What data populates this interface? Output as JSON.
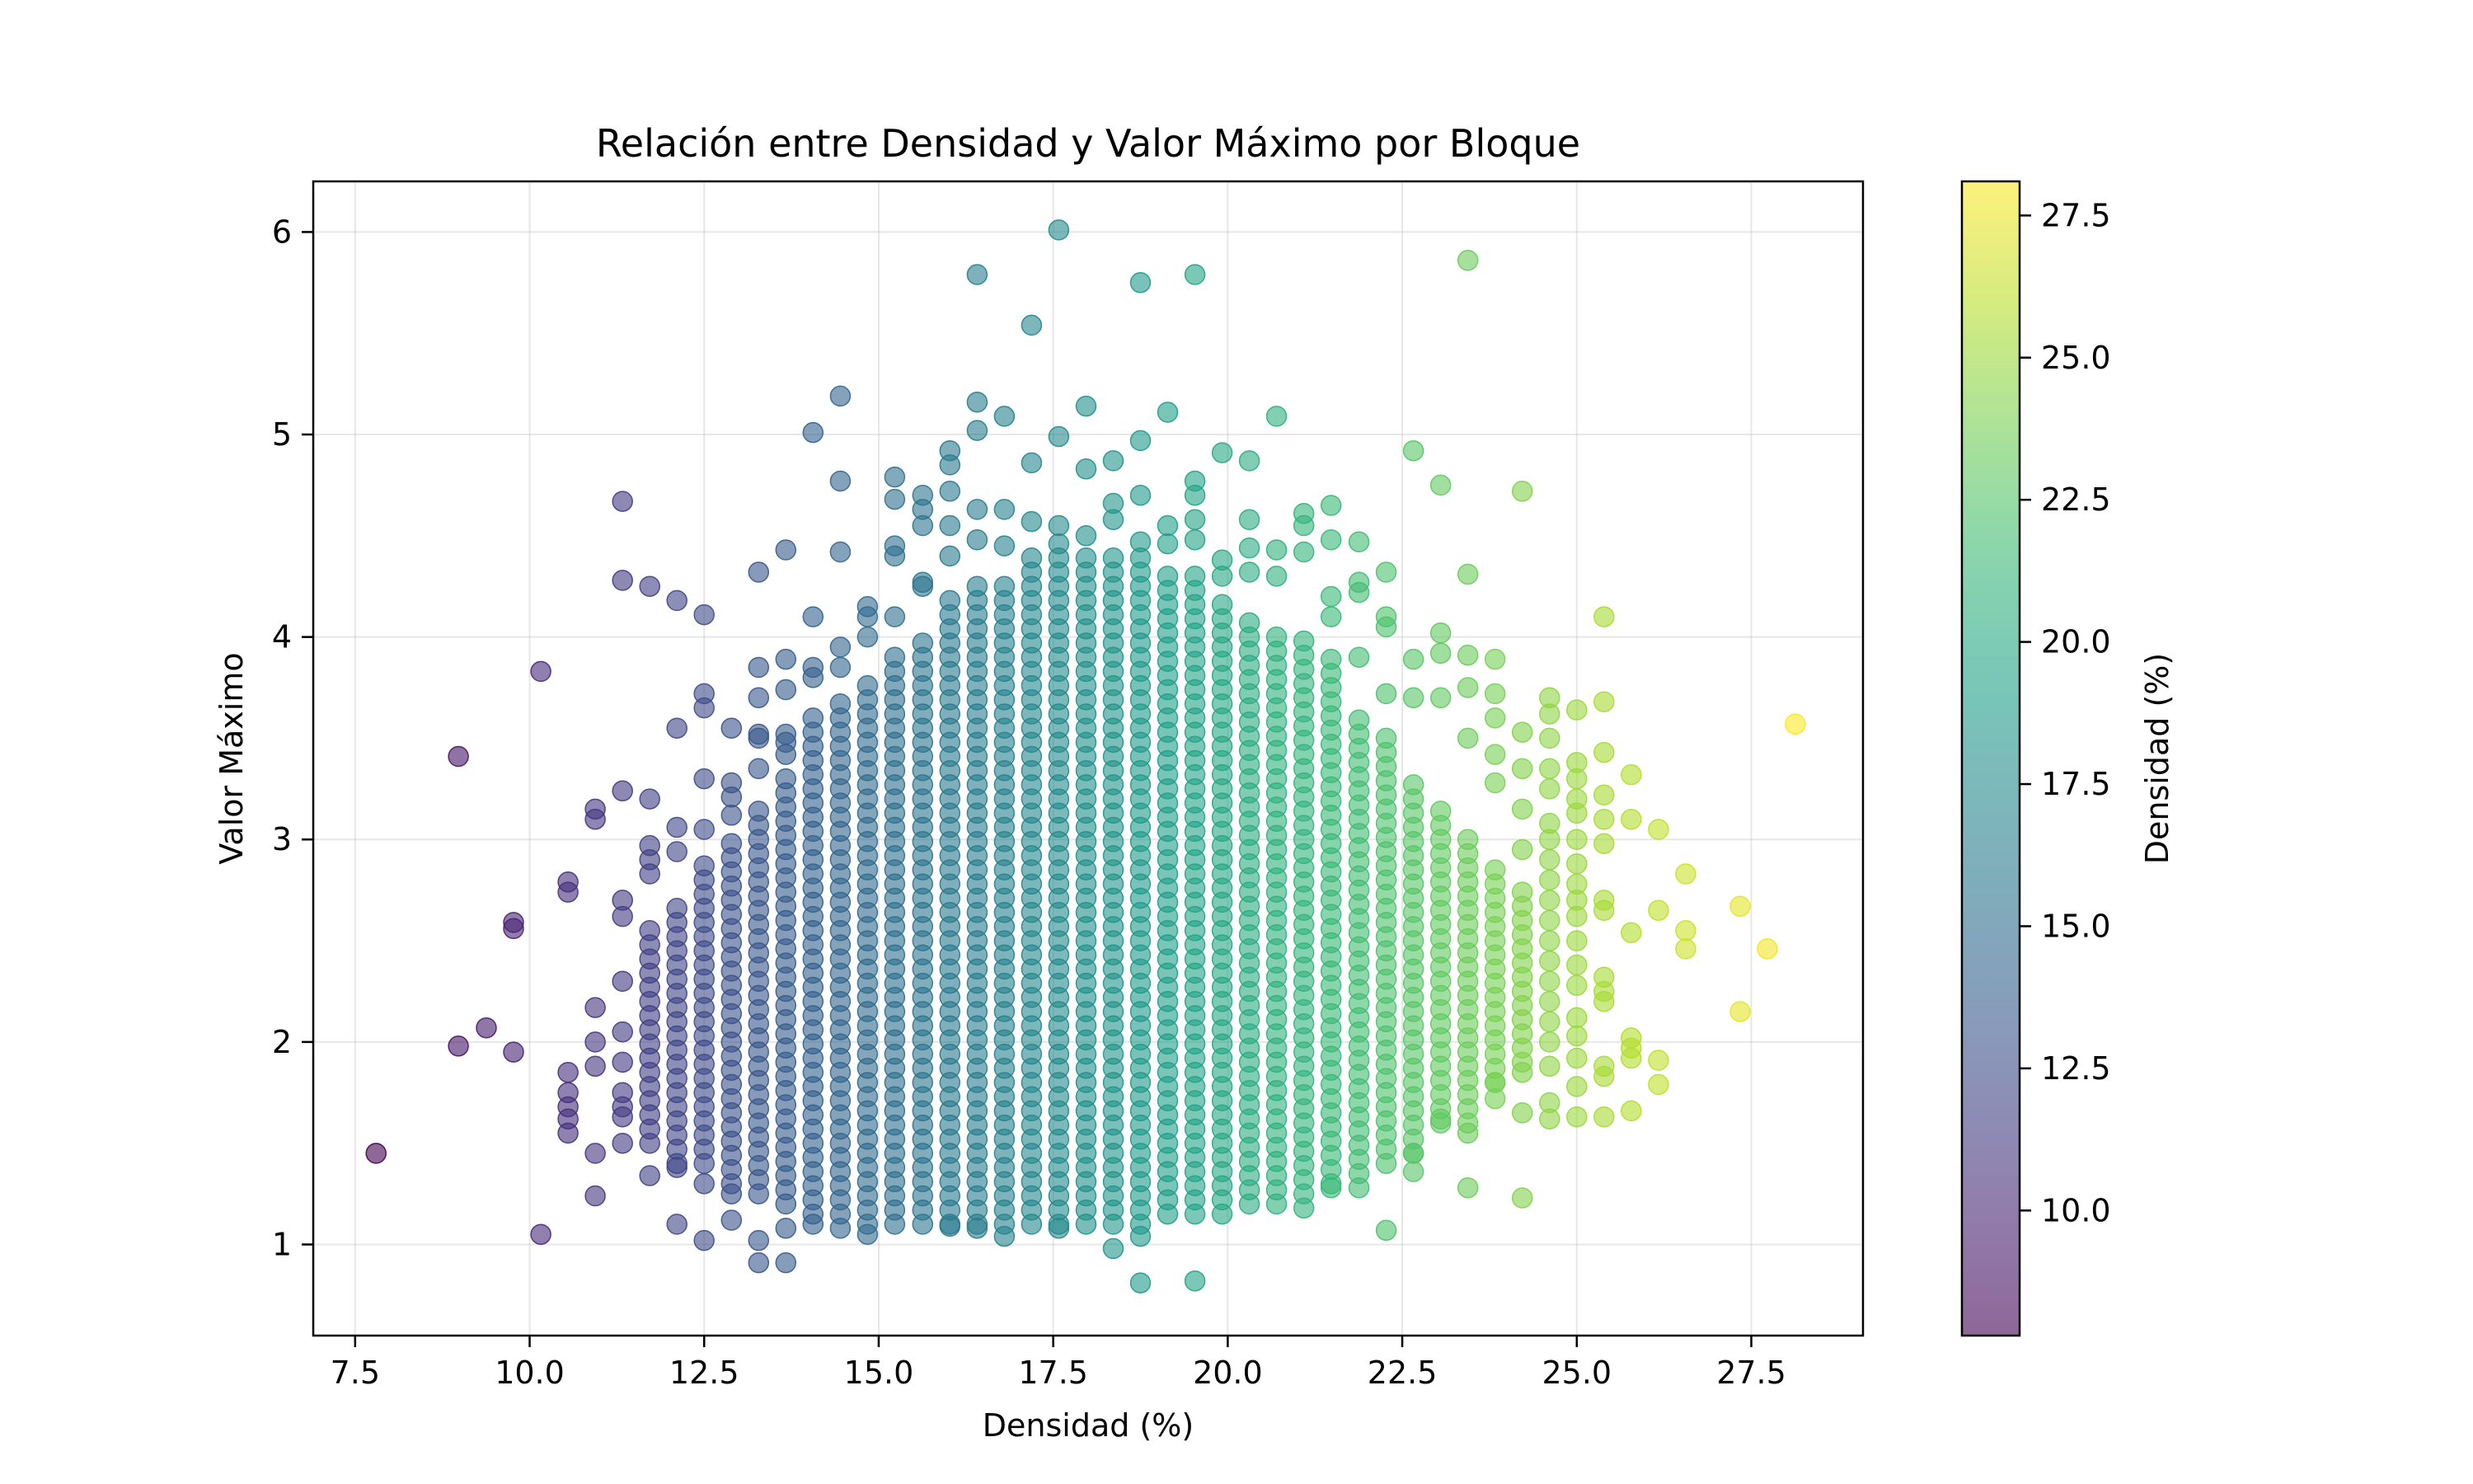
{
  "chart_data": {
    "type": "scatter",
    "title": "Relación entre Densidad y Valor Máximo por Bloque",
    "xlabel": "Densidad (%)",
    "ylabel": "Valor Máximo",
    "xlim": [
      6.9,
      29.1
    ],
    "ylim": [
      0.55,
      6.25
    ],
    "xticks": [
      7.5,
      10.0,
      12.5,
      15.0,
      17.5,
      20.0,
      22.5,
      25.0,
      27.5
    ],
    "xtick_labels": [
      "7.5",
      "10.0",
      "12.5",
      "15.0",
      "17.5",
      "20.0",
      "22.5",
      "25.0",
      "27.5"
    ],
    "yticks": [
      1,
      2,
      3,
      4,
      5,
      6
    ],
    "ytick_labels": [
      "1",
      "2",
      "3",
      "4",
      "5",
      "6"
    ],
    "grid": true,
    "colormap": "viridis",
    "marker_alpha": 0.6,
    "colorbar": {
      "label": "Densidad (%)",
      "range": [
        7.8,
        28.1
      ],
      "ticks": [
        10.0,
        12.5,
        15.0,
        17.5,
        20.0,
        22.5,
        25.0,
        27.5
      ],
      "tick_labels": [
        "10.0",
        "12.5",
        "15.0",
        "17.5",
        "20.0",
        "22.5",
        "25.0",
        "27.5"
      ]
    },
    "density_columns": [
      7.8,
      8.98,
      9.38,
      9.77,
      10.16,
      10.55,
      10.94,
      11.33,
      11.72,
      12.11,
      12.5,
      12.89,
      13.28,
      13.67,
      14.06,
      14.45,
      14.84,
      15.23,
      15.63,
      16.02,
      16.41,
      16.8,
      17.19,
      17.58,
      17.97,
      18.36,
      18.75,
      19.14,
      19.53,
      19.92,
      20.31,
      20.7,
      21.09,
      21.48,
      21.88,
      22.27,
      22.66,
      23.05,
      23.44,
      23.83,
      24.22,
      24.61,
      25.0,
      25.39,
      25.78,
      26.17,
      26.56,
      27.34,
      27.73,
      28.13
    ],
    "bulk_ranges": [
      {
        "x": 11.72,
        "y": [
          1.5,
          2.6
        ]
      },
      {
        "x": 12.11,
        "y": [
          1.4,
          2.7
        ]
      },
      {
        "x": 12.5,
        "y": [
          1.4,
          2.9
        ]
      },
      {
        "x": 12.89,
        "y": [
          1.3,
          3.0
        ]
      },
      {
        "x": 13.28,
        "y": [
          1.25,
          3.2
        ]
      },
      {
        "x": 13.67,
        "y": [
          1.2,
          3.3
        ]
      },
      {
        "x": 14.06,
        "y": [
          1.15,
          3.6
        ]
      },
      {
        "x": 14.45,
        "y": [
          1.15,
          3.7
        ]
      },
      {
        "x": 14.84,
        "y": [
          1.1,
          3.8
        ]
      },
      {
        "x": 15.23,
        "y": [
          1.1,
          3.9
        ]
      },
      {
        "x": 15.63,
        "y": [
          1.1,
          4.0
        ]
      },
      {
        "x": 16.02,
        "y": [
          1.1,
          4.2
        ]
      },
      {
        "x": 16.41,
        "y": [
          1.1,
          4.3
        ]
      },
      {
        "x": 16.8,
        "y": [
          1.1,
          4.3
        ]
      },
      {
        "x": 17.19,
        "y": [
          1.1,
          4.4
        ]
      },
      {
        "x": 17.58,
        "y": [
          1.1,
          4.5
        ]
      },
      {
        "x": 17.97,
        "y": [
          1.1,
          4.4
        ]
      },
      {
        "x": 18.36,
        "y": [
          1.1,
          4.4
        ]
      },
      {
        "x": 18.75,
        "y": [
          1.1,
          4.4
        ]
      },
      {
        "x": 19.14,
        "y": [
          1.15,
          4.3
        ]
      },
      {
        "x": 19.53,
        "y": [
          1.15,
          4.3
        ]
      },
      {
        "x": 19.92,
        "y": [
          1.15,
          4.2
        ]
      },
      {
        "x": 20.31,
        "y": [
          1.2,
          4.1
        ]
      },
      {
        "x": 20.7,
        "y": [
          1.2,
          4.0
        ]
      },
      {
        "x": 21.09,
        "y": [
          1.25,
          4.0
        ]
      },
      {
        "x": 21.48,
        "y": [
          1.3,
          3.9
        ]
      },
      {
        "x": 21.88,
        "y": [
          1.35,
          3.6
        ]
      },
      {
        "x": 22.27,
        "y": [
          1.4,
          3.5
        ]
      },
      {
        "x": 22.66,
        "y": [
          1.45,
          3.3
        ]
      },
      {
        "x": 23.05,
        "y": [
          1.6,
          3.2
        ]
      },
      {
        "x": 23.44,
        "y": [
          1.6,
          3.0
        ]
      },
      {
        "x": 23.83,
        "y": [
          1.8,
          2.9
        ]
      },
      {
        "x": 24.22,
        "y": [
          1.9,
          2.8
        ]
      }
    ],
    "points": [
      [
        7.8,
        1.45
      ],
      [
        8.98,
        3.41
      ],
      [
        8.98,
        1.98
      ],
      [
        9.38,
        2.07
      ],
      [
        9.77,
        2.59
      ],
      [
        9.77,
        2.56
      ],
      [
        9.77,
        1.95
      ],
      [
        10.16,
        3.83
      ],
      [
        10.16,
        1.05
      ],
      [
        10.55,
        2.79
      ],
      [
        10.55,
        2.74
      ],
      [
        10.55,
        1.85
      ],
      [
        10.55,
        1.75
      ],
      [
        10.55,
        1.68
      ],
      [
        10.55,
        1.62
      ],
      [
        10.55,
        1.55
      ],
      [
        10.94,
        3.15
      ],
      [
        10.94,
        3.1
      ],
      [
        10.94,
        2.17
      ],
      [
        10.94,
        2.0
      ],
      [
        10.94,
        1.88
      ],
      [
        10.94,
        1.45
      ],
      [
        10.94,
        1.24
      ],
      [
        11.33,
        4.67
      ],
      [
        11.33,
        4.28
      ],
      [
        11.33,
        3.24
      ],
      [
        11.33,
        2.7
      ],
      [
        11.33,
        2.62
      ],
      [
        11.33,
        2.3
      ],
      [
        11.33,
        2.05
      ],
      [
        11.33,
        1.9
      ],
      [
        11.33,
        1.75
      ],
      [
        11.33,
        1.68
      ],
      [
        11.33,
        1.63
      ],
      [
        11.33,
        1.5
      ],
      [
        11.72,
        4.25
      ],
      [
        11.72,
        3.2
      ],
      [
        11.72,
        2.97
      ],
      [
        11.72,
        2.9
      ],
      [
        11.72,
        2.83
      ],
      [
        11.72,
        1.34
      ],
      [
        12.11,
        4.18
      ],
      [
        12.11,
        3.55
      ],
      [
        12.11,
        3.06
      ],
      [
        12.11,
        2.94
      ],
      [
        12.11,
        1.38
      ],
      [
        12.11,
        1.1
      ],
      [
        12.5,
        4.11
      ],
      [
        12.5,
        3.72
      ],
      [
        12.5,
        3.65
      ],
      [
        12.5,
        3.3
      ],
      [
        12.5,
        3.05
      ],
      [
        12.5,
        1.3
      ],
      [
        12.5,
        1.02
      ],
      [
        12.89,
        3.55
      ],
      [
        12.89,
        3.28
      ],
      [
        12.89,
        3.21
      ],
      [
        12.89,
        3.12
      ],
      [
        12.89,
        1.25
      ],
      [
        12.89,
        1.12
      ],
      [
        13.28,
        4.32
      ],
      [
        13.28,
        3.85
      ],
      [
        13.28,
        3.7
      ],
      [
        13.28,
        3.52
      ],
      [
        13.28,
        3.5
      ],
      [
        13.28,
        3.35
      ],
      [
        13.28,
        1.02
      ],
      [
        13.28,
        0.91
      ],
      [
        13.67,
        4.43
      ],
      [
        13.67,
        3.89
      ],
      [
        13.67,
        3.74
      ],
      [
        13.67,
        3.52
      ],
      [
        13.67,
        3.48
      ],
      [
        13.67,
        3.42
      ],
      [
        13.67,
        1.08
      ],
      [
        13.67,
        0.91
      ],
      [
        14.06,
        5.01
      ],
      [
        14.06,
        4.1
      ],
      [
        14.06,
        3.85
      ],
      [
        14.06,
        3.8
      ],
      [
        14.06,
        1.1
      ],
      [
        14.45,
        5.19
      ],
      [
        14.45,
        4.77
      ],
      [
        14.45,
        4.42
      ],
      [
        14.45,
        3.95
      ],
      [
        14.45,
        3.85
      ],
      [
        14.45,
        1.08
      ],
      [
        14.84,
        4.15
      ],
      [
        14.84,
        4.1
      ],
      [
        14.84,
        4.0
      ],
      [
        14.84,
        1.05
      ],
      [
        15.23,
        4.79
      ],
      [
        15.23,
        4.68
      ],
      [
        15.23,
        4.45
      ],
      [
        15.23,
        4.4
      ],
      [
        15.23,
        4.1
      ],
      [
        15.63,
        4.7
      ],
      [
        15.63,
        4.63
      ],
      [
        15.63,
        4.55
      ],
      [
        15.63,
        4.27
      ],
      [
        15.63,
        4.25
      ],
      [
        16.02,
        4.92
      ],
      [
        16.02,
        4.85
      ],
      [
        16.02,
        4.72
      ],
      [
        16.02,
        4.55
      ],
      [
        16.02,
        4.4
      ],
      [
        16.02,
        1.09
      ],
      [
        16.41,
        5.79
      ],
      [
        16.41,
        5.16
      ],
      [
        16.41,
        5.02
      ],
      [
        16.41,
        4.63
      ],
      [
        16.41,
        4.48
      ],
      [
        16.41,
        1.08
      ],
      [
        16.8,
        5.09
      ],
      [
        16.8,
        4.63
      ],
      [
        16.8,
        4.45
      ],
      [
        16.8,
        1.04
      ],
      [
        17.19,
        5.54
      ],
      [
        17.19,
        4.86
      ],
      [
        17.19,
        4.57
      ],
      [
        17.58,
        6.01
      ],
      [
        17.58,
        4.99
      ],
      [
        17.58,
        4.55
      ],
      [
        17.58,
        1.08
      ],
      [
        17.97,
        5.14
      ],
      [
        17.97,
        4.83
      ],
      [
        17.97,
        4.5
      ],
      [
        18.36,
        4.87
      ],
      [
        18.36,
        4.66
      ],
      [
        18.36,
        4.58
      ],
      [
        18.36,
        0.98
      ],
      [
        18.75,
        5.75
      ],
      [
        18.75,
        4.97
      ],
      [
        18.75,
        4.7
      ],
      [
        18.75,
        4.47
      ],
      [
        18.75,
        1.04
      ],
      [
        18.75,
        0.81
      ],
      [
        19.14,
        5.11
      ],
      [
        19.14,
        4.55
      ],
      [
        19.14,
        4.46
      ],
      [
        19.53,
        5.79
      ],
      [
        19.53,
        4.77
      ],
      [
        19.53,
        4.7
      ],
      [
        19.53,
        4.58
      ],
      [
        19.53,
        4.48
      ],
      [
        19.53,
        0.82
      ],
      [
        19.92,
        4.91
      ],
      [
        19.92,
        4.38
      ],
      [
        19.92,
        4.3
      ],
      [
        20.31,
        4.87
      ],
      [
        20.31,
        4.58
      ],
      [
        20.31,
        4.44
      ],
      [
        20.31,
        4.32
      ],
      [
        20.7,
        5.09
      ],
      [
        20.7,
        4.43
      ],
      [
        20.7,
        4.3
      ],
      [
        21.09,
        4.61
      ],
      [
        21.09,
        4.55
      ],
      [
        21.09,
        4.42
      ],
      [
        21.09,
        1.18
      ],
      [
        21.48,
        4.65
      ],
      [
        21.48,
        4.48
      ],
      [
        21.48,
        4.2
      ],
      [
        21.48,
        4.1
      ],
      [
        21.48,
        1.28
      ],
      [
        21.88,
        4.47
      ],
      [
        21.88,
        4.27
      ],
      [
        21.88,
        4.22
      ],
      [
        21.88,
        3.9
      ],
      [
        21.88,
        1.28
      ],
      [
        22.27,
        4.32
      ],
      [
        22.27,
        4.1
      ],
      [
        22.27,
        4.05
      ],
      [
        22.27,
        3.72
      ],
      [
        22.27,
        1.07
      ],
      [
        22.66,
        4.92
      ],
      [
        22.66,
        3.89
      ],
      [
        22.66,
        3.7
      ],
      [
        22.66,
        1.45
      ],
      [
        22.66,
        1.36
      ],
      [
        23.05,
        4.75
      ],
      [
        23.05,
        4.02
      ],
      [
        23.05,
        3.92
      ],
      [
        23.05,
        3.7
      ],
      [
        23.05,
        1.62
      ],
      [
        23.44,
        5.86
      ],
      [
        23.44,
        4.31
      ],
      [
        23.44,
        3.91
      ],
      [
        23.44,
        3.75
      ],
      [
        23.44,
        3.5
      ],
      [
        23.44,
        1.55
      ],
      [
        23.44,
        1.28
      ],
      [
        23.83,
        3.89
      ],
      [
        23.83,
        3.72
      ],
      [
        23.83,
        3.6
      ],
      [
        23.83,
        3.42
      ],
      [
        23.83,
        3.28
      ],
      [
        23.83,
        1.8
      ],
      [
        23.83,
        1.72
      ],
      [
        24.22,
        4.72
      ],
      [
        24.22,
        3.53
      ],
      [
        24.22,
        3.35
      ],
      [
        24.22,
        3.15
      ],
      [
        24.22,
        2.95
      ],
      [
        24.22,
        1.85
      ],
      [
        24.22,
        1.65
      ],
      [
        24.22,
        1.23
      ],
      [
        24.61,
        3.7
      ],
      [
        24.61,
        3.62
      ],
      [
        24.61,
        3.5
      ],
      [
        24.61,
        3.35
      ],
      [
        24.61,
        3.25
      ],
      [
        24.61,
        3.08
      ],
      [
        24.61,
        3.0
      ],
      [
        24.61,
        2.9
      ],
      [
        24.61,
        2.8
      ],
      [
        24.61,
        2.7
      ],
      [
        24.61,
        2.6
      ],
      [
        24.61,
        2.5
      ],
      [
        24.61,
        2.4
      ],
      [
        24.61,
        2.3
      ],
      [
        24.61,
        2.2
      ],
      [
        24.61,
        2.1
      ],
      [
        24.61,
        2.0
      ],
      [
        24.61,
        1.88
      ],
      [
        24.61,
        1.7
      ],
      [
        24.61,
        1.62
      ],
      [
        25.0,
        3.64
      ],
      [
        25.0,
        3.38
      ],
      [
        25.0,
        3.3
      ],
      [
        25.0,
        3.2
      ],
      [
        25.0,
        3.13
      ],
      [
        25.0,
        3.0
      ],
      [
        25.0,
        2.88
      ],
      [
        25.0,
        2.78
      ],
      [
        25.0,
        2.7
      ],
      [
        25.0,
        2.62
      ],
      [
        25.0,
        2.5
      ],
      [
        25.0,
        2.38
      ],
      [
        25.0,
        2.28
      ],
      [
        25.0,
        2.12
      ],
      [
        25.0,
        2.03
      ],
      [
        25.0,
        1.92
      ],
      [
        25.0,
        1.78
      ],
      [
        25.0,
        1.63
      ],
      [
        25.39,
        4.1
      ],
      [
        25.39,
        3.68
      ],
      [
        25.39,
        3.43
      ],
      [
        25.39,
        3.22
      ],
      [
        25.39,
        3.1
      ],
      [
        25.39,
        2.98
      ],
      [
        25.39,
        2.7
      ],
      [
        25.39,
        2.65
      ],
      [
        25.39,
        2.32
      ],
      [
        25.39,
        2.25
      ],
      [
        25.39,
        2.2
      ],
      [
        25.39,
        1.88
      ],
      [
        25.39,
        1.83
      ],
      [
        25.39,
        1.63
      ],
      [
        25.78,
        3.32
      ],
      [
        25.78,
        3.1
      ],
      [
        25.78,
        2.54
      ],
      [
        25.78,
        2.02
      ],
      [
        25.78,
        1.97
      ],
      [
        25.78,
        1.92
      ],
      [
        25.78,
        1.66
      ],
      [
        26.17,
        3.05
      ],
      [
        26.17,
        2.65
      ],
      [
        26.17,
        1.91
      ],
      [
        26.17,
        1.79
      ],
      [
        26.56,
        2.83
      ],
      [
        26.56,
        2.55
      ],
      [
        26.56,
        2.46
      ],
      [
        27.34,
        2.67
      ],
      [
        27.34,
        2.15
      ],
      [
        27.73,
        2.46
      ],
      [
        28.13,
        3.57
      ]
    ]
  }
}
